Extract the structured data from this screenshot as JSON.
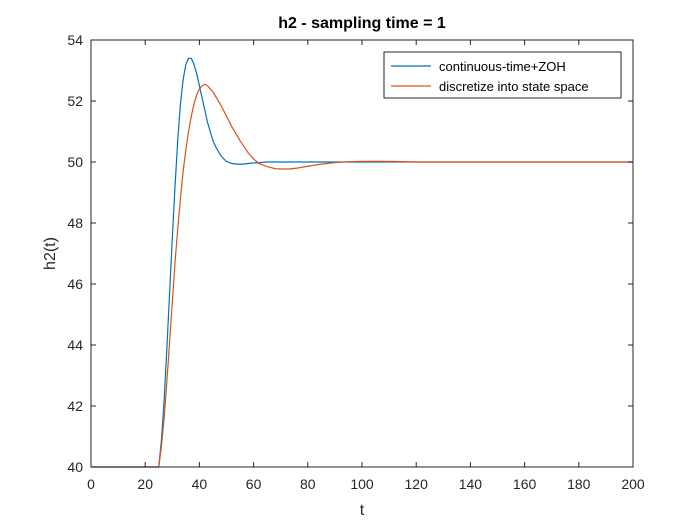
{
  "chart_data": {
    "type": "line",
    "title": "h2 - sampling time = 1",
    "xlabel": "t",
    "ylabel": "h2(t)",
    "xlim": [
      0,
      200
    ],
    "ylim": [
      40,
      54
    ],
    "xticks": [
      0,
      20,
      40,
      60,
      80,
      100,
      120,
      140,
      160,
      180,
      200
    ],
    "yticks": [
      40,
      42,
      44,
      46,
      48,
      50,
      52,
      54
    ],
    "grid": false,
    "legend_position": "top-right",
    "series": [
      {
        "name": "continuous-time+ZOH",
        "color": "#0072BD",
        "x": [
          0,
          10,
          20,
          25,
          26,
          27,
          28,
          29,
          30,
          31,
          32,
          33,
          34,
          35,
          36,
          37,
          38,
          39,
          40,
          41,
          42,
          43,
          44,
          45,
          46,
          47,
          48,
          49,
          50,
          52,
          54,
          56,
          58,
          60,
          62,
          65,
          70,
          75,
          80,
          90,
          100,
          110,
          120,
          130,
          140,
          150,
          160,
          170,
          180,
          190,
          200
        ],
        "y": [
          40,
          40,
          40,
          40,
          40.9,
          42.2,
          43.9,
          45.7,
          47.5,
          49.2,
          50.7,
          51.9,
          52.7,
          53.2,
          53.4,
          53.4,
          53.2,
          52.9,
          52.5,
          52.1,
          51.7,
          51.3,
          51.0,
          50.7,
          50.5,
          50.35,
          50.2,
          50.1,
          50.02,
          49.95,
          49.93,
          49.93,
          49.95,
          49.97,
          49.98,
          50.0,
          50.0,
          50.0,
          50.0,
          50.0,
          50.0,
          50.0,
          50.0,
          50.0,
          50.0,
          50.0,
          50.0,
          50.0,
          50.0,
          50.0,
          50.0
        ]
      },
      {
        "name": "discretize into state space",
        "color": "#D95319",
        "x": [
          0,
          10,
          20,
          25,
          26,
          27,
          28,
          29,
          30,
          31,
          32,
          33,
          34,
          35,
          36,
          37,
          38,
          39,
          40,
          41,
          42,
          43,
          44,
          45,
          46,
          48,
          50,
          52,
          55,
          58,
          60,
          62,
          65,
          68,
          70,
          73,
          76,
          80,
          85,
          90,
          95,
          100,
          105,
          110,
          120,
          130,
          140,
          150,
          160,
          170,
          180,
          190,
          200
        ],
        "y": [
          40,
          40,
          40,
          40,
          40.7,
          41.6,
          42.8,
          44.1,
          45.4,
          46.7,
          47.8,
          48.8,
          49.7,
          50.4,
          51.0,
          51.5,
          51.9,
          52.2,
          52.4,
          52.5,
          52.55,
          52.5,
          52.4,
          52.3,
          52.15,
          51.85,
          51.5,
          51.15,
          50.7,
          50.3,
          50.1,
          49.95,
          49.85,
          49.78,
          49.77,
          49.77,
          49.8,
          49.86,
          49.93,
          49.98,
          50.01,
          50.02,
          50.02,
          50.02,
          50.0,
          50.0,
          50.0,
          50.0,
          50.0,
          50.0,
          50.0,
          50.0,
          50.0
        ]
      }
    ]
  }
}
